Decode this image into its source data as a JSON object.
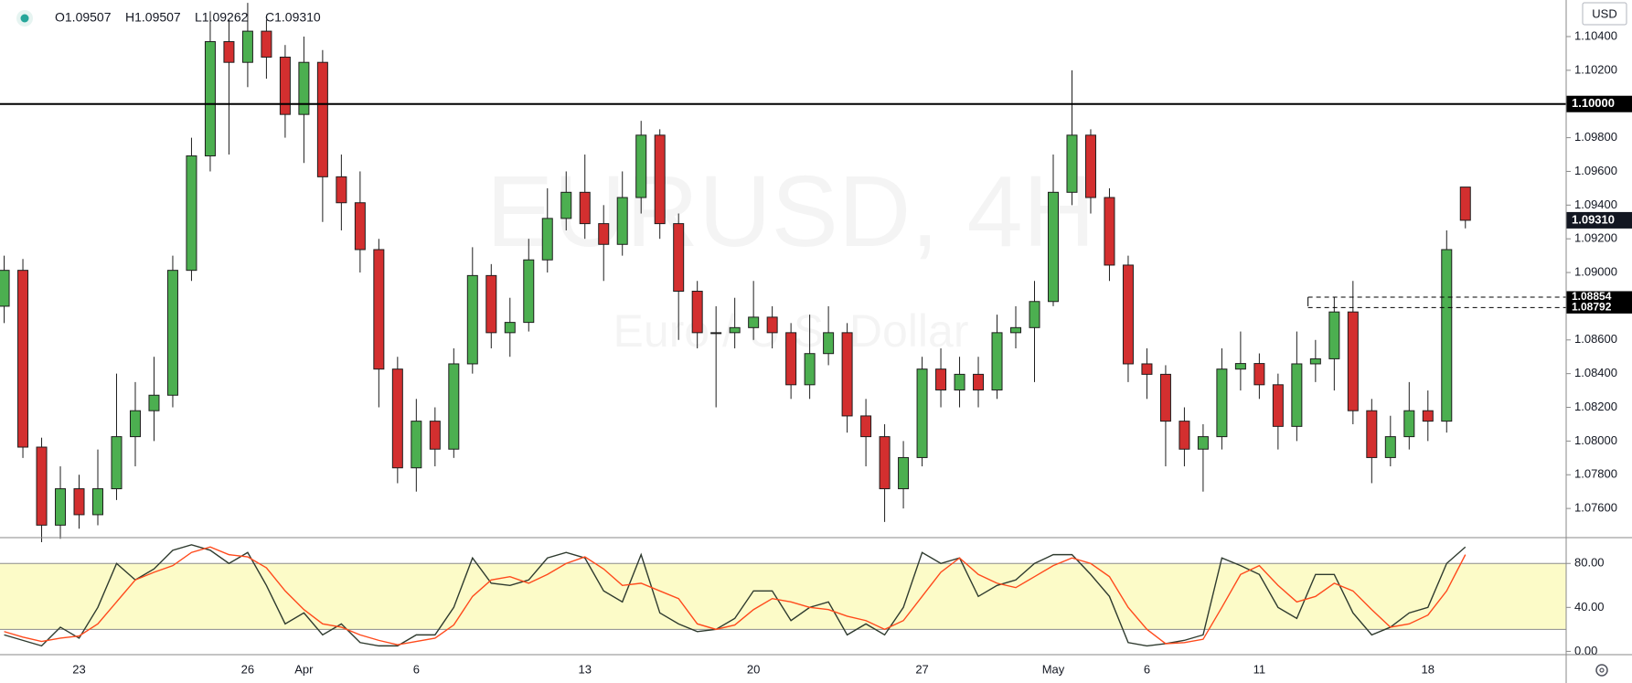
{
  "chart_data": [
    {
      "type": "candlestick",
      "header": [
        "O1.09507",
        "H1.09507",
        "L1.09262",
        "C1.09310"
      ],
      "watermark": "EURUSD, 4H",
      "watermark_subtitle": "Euro / U.S. Dollar",
      "currency": "USD",
      "categories": [
        null,
        null,
        null,
        null,
        "23",
        null,
        null,
        null,
        null,
        null,
        null,
        null,
        null,
        "26",
        null,
        null,
        "Apr",
        null,
        null,
        null,
        null,
        null,
        "6",
        null,
        null,
        null,
        null,
        null,
        null,
        null,
        null,
        "13",
        null,
        null,
        null,
        null,
        null,
        null,
        null,
        null,
        "20",
        null,
        null,
        null,
        null,
        null,
        null,
        null,
        null,
        "27",
        null,
        null,
        null,
        null,
        null,
        null,
        "May",
        null,
        null,
        null,
        null,
        "6",
        null,
        null,
        null,
        null,
        null,
        "11",
        null,
        null,
        null,
        null,
        null,
        null,
        null,
        null,
        "18",
        null,
        null
      ],
      "open": [
        1.088,
        1.09013,
        1.07964,
        1.07501,
        1.07717,
        1.07563,
        1.07717,
        1.08026,
        1.0818,
        1.08272,
        1.09013,
        1.09692,
        1.1037,
        1.10247,
        1.10432,
        1.10278,
        1.09938,
        1.10247,
        1.09568,
        1.09414,
        1.09136,
        1.08427,
        1.07841,
        1.08118,
        1.07952,
        1.08458,
        1.08982,
        1.08643,
        1.08704,
        1.09075,
        1.09321,
        1.09476,
        1.0929,
        1.09167,
        1.09445,
        1.09815,
        1.0929,
        1.08889,
        1.08643,
        1.08643,
        1.08673,
        1.08735,
        1.08643,
        1.08334,
        1.08519,
        1.08643,
        1.08149,
        1.08026,
        1.07717,
        1.07902,
        1.08427,
        1.08303,
        1.08396,
        1.08303,
        1.08643,
        1.08673,
        1.08828,
        1.09476,
        1.09815,
        1.09445,
        1.09044,
        1.08458,
        1.08396,
        1.08118,
        1.07952,
        1.08026,
        1.08427,
        1.0846,
        1.08334,
        1.08087,
        1.08458,
        1.08488,
        1.08766,
        1.0818,
        1.07902,
        1.08026,
        1.0818,
        1.08118,
        1.09507
      ],
      "high": [
        1.091,
        1.0908,
        1.0802,
        1.0785,
        1.078,
        1.0795,
        1.084,
        1.0835,
        1.085,
        1.091,
        1.098,
        1.1055,
        1.105,
        1.106,
        1.105,
        1.1035,
        1.104,
        1.1032,
        1.097,
        1.096,
        1.092,
        1.085,
        1.0825,
        1.082,
        1.0855,
        1.0915,
        1.0905,
        1.0885,
        1.092,
        1.095,
        1.096,
        1.097,
        1.094,
        1.096,
        1.099,
        1.0985,
        1.0935,
        1.0895,
        1.088,
        1.0885,
        1.0895,
        1.088,
        1.087,
        1.0875,
        1.088,
        1.087,
        1.0825,
        1.081,
        1.08,
        1.085,
        1.0855,
        1.085,
        1.085,
        1.0875,
        1.088,
        1.0895,
        1.097,
        1.102,
        1.0985,
        1.095,
        1.091,
        1.0855,
        1.0845,
        1.082,
        1.081,
        1.0855,
        1.0865,
        1.0852,
        1.084,
        1.0865,
        1.086,
        1.08854,
        1.0895,
        1.0825,
        1.0815,
        1.0835,
        1.083,
        1.0925,
        1.09507
      ],
      "low": [
        1.087,
        1.079,
        1.074,
        1.0742,
        1.0748,
        1.075,
        1.0765,
        1.0785,
        1.08,
        1.082,
        1.0895,
        1.096,
        1.097,
        1.101,
        1.1015,
        1.098,
        1.0965,
        1.093,
        1.0925,
        1.09,
        1.082,
        1.0775,
        1.077,
        1.0785,
        1.079,
        1.084,
        1.0855,
        1.085,
        1.0865,
        1.09,
        1.0925,
        1.092,
        1.0895,
        1.091,
        1.0935,
        1.092,
        1.086,
        1.0855,
        1.082,
        1.0855,
        1.086,
        1.0855,
        1.0825,
        1.0825,
        1.0845,
        1.0805,
        1.0785,
        1.0752,
        1.076,
        1.0785,
        1.082,
        1.082,
        1.082,
        1.0825,
        1.0855,
        1.0835,
        1.088,
        1.094,
        1.0935,
        1.0895,
        1.0835,
        1.0825,
        1.0785,
        1.0785,
        1.077,
        1.0795,
        1.083,
        1.0825,
        1.0795,
        1.08,
        1.0835,
        1.083,
        1.081,
        1.0775,
        1.0785,
        1.0795,
        1.08,
        1.0805,
        1.09262
      ],
      "close": [
        1.09013,
        1.07964,
        1.07501,
        1.07717,
        1.07563,
        1.07717,
        1.08026,
        1.0818,
        1.08272,
        1.09013,
        1.09692,
        1.1037,
        1.10247,
        1.10432,
        1.10278,
        1.09938,
        1.10247,
        1.09568,
        1.09414,
        1.09136,
        1.08427,
        1.07841,
        1.08118,
        1.07952,
        1.08458,
        1.08982,
        1.08643,
        1.08704,
        1.09075,
        1.09321,
        1.09476,
        1.0929,
        1.09167,
        1.09445,
        1.09815,
        1.0929,
        1.08889,
        1.08643,
        1.08643,
        1.08673,
        1.08735,
        1.08643,
        1.08334,
        1.08519,
        1.08643,
        1.08149,
        1.08026,
        1.07717,
        1.07902,
        1.08427,
        1.08303,
        1.08396,
        1.08303,
        1.08643,
        1.08673,
        1.08828,
        1.09476,
        1.09815,
        1.09445,
        1.09044,
        1.08458,
        1.08396,
        1.08118,
        1.07952,
        1.08026,
        1.08427,
        1.0846,
        1.08334,
        1.08087,
        1.08458,
        1.08488,
        1.08766,
        1.0818,
        1.07902,
        1.08026,
        1.0818,
        1.08118,
        1.09136,
        1.0931
      ],
      "up_color": "#4caf50",
      "down_color": "#d32f2f",
      "wick_color": "#1e1e1e",
      "ylim": [
        1.07427,
        1.10617
      ],
      "yticks": [
        {
          "value": 1.076,
          "label": "1.07600"
        },
        {
          "value": 1.078,
          "label": "1.07800"
        },
        {
          "value": 1.08,
          "label": "1.08000"
        },
        {
          "value": 1.082,
          "label": "1.08200"
        },
        {
          "value": 1.084,
          "label": "1.08400"
        },
        {
          "value": 1.086,
          "label": "1.08600"
        },
        {
          "value": 1.088,
          "label": "1.08800"
        },
        {
          "value": 1.09,
          "label": "1.09000"
        },
        {
          "value": 1.092,
          "label": "1.09200"
        },
        {
          "value": 1.094,
          "label": "1.09400"
        },
        {
          "value": 1.096,
          "label": "1.09600"
        },
        {
          "value": 1.098,
          "label": "1.09800"
        },
        {
          "value": 1.102,
          "label": "1.10200"
        },
        {
          "value": 1.104,
          "label": "1.10400"
        }
      ],
      "horizontal_line": {
        "value": 1.1,
        "label": "1.10000"
      },
      "dashed_levels": [
        {
          "value": 1.08854,
          "label": "1.08854"
        },
        {
          "value": 1.08792,
          "label": "1.08792"
        }
      ],
      "last_price": {
        "value": 1.0931,
        "label": "1.09310"
      }
    },
    {
      "type": "line",
      "series": [
        {
          "color": "#2f3b2f",
          "values": [
            15,
            10,
            5,
            22,
            12,
            40,
            80,
            65,
            75,
            92,
            97,
            92,
            80,
            90,
            60,
            25,
            35,
            15,
            25,
            8,
            5,
            5,
            15,
            15,
            40,
            85,
            62,
            60,
            65,
            85,
            90,
            85,
            55,
            45,
            88,
            35,
            25,
            18,
            20,
            30,
            55,
            55,
            28,
            40,
            45,
            15,
            25,
            15,
            40,
            90,
            80,
            85,
            50,
            60,
            65,
            80,
            88,
            88,
            70,
            50,
            8,
            5,
            7,
            10,
            15,
            85,
            78,
            70,
            40,
            30,
            70,
            70,
            35,
            15,
            22,
            35,
            40,
            80,
            95
          ]
        },
        {
          "color": "#ff4a1c",
          "values": [
            18,
            13,
            9,
            12,
            14,
            25,
            45,
            65,
            72,
            78,
            90,
            95,
            88,
            86,
            76,
            55,
            38,
            25,
            22,
            15,
            10,
            6,
            9,
            12,
            24,
            50,
            65,
            68,
            62,
            70,
            80,
            86,
            75,
            60,
            62,
            55,
            48,
            25,
            20,
            24,
            38,
            48,
            45,
            40,
            38,
            32,
            28,
            20,
            28,
            50,
            72,
            85,
            70,
            62,
            58,
            68,
            78,
            85,
            80,
            68,
            40,
            20,
            7,
            8,
            11,
            40,
            70,
            78,
            60,
            45,
            50,
            62,
            55,
            38,
            22,
            25,
            33,
            55,
            88
          ]
        }
      ],
      "band": [
        20,
        80
      ],
      "band_color": "#fcfbc8",
      "ylim": [
        -3,
        103.5
      ],
      "yticks": [
        {
          "value": 0,
          "label": "0.00"
        },
        {
          "value": 40,
          "label": "40.00"
        },
        {
          "value": 80,
          "label": "80.00"
        }
      ]
    }
  ]
}
